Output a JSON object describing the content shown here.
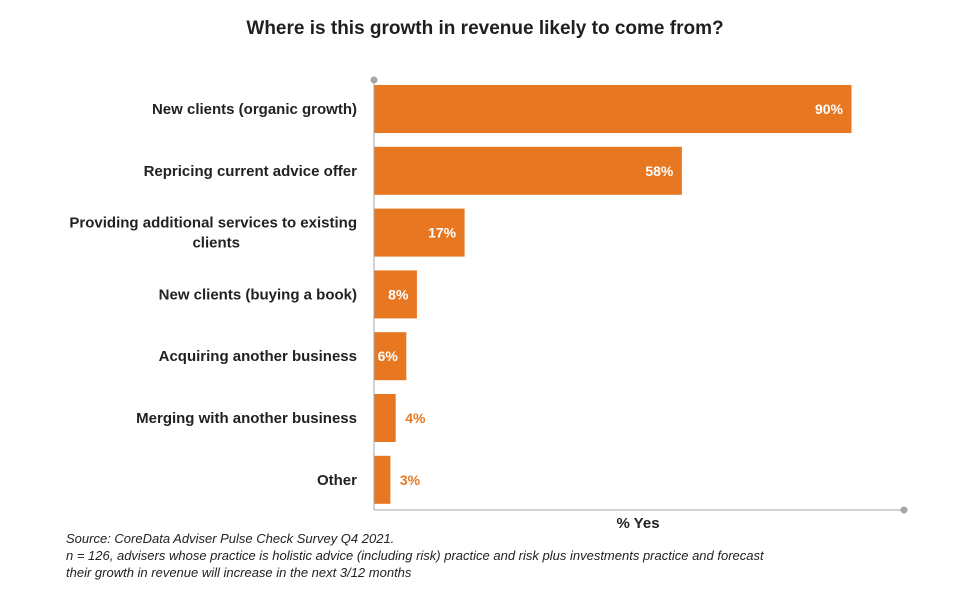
{
  "chart_data": {
    "type": "bar",
    "orientation": "horizontal",
    "title": "Where is this growth in revenue likely to come from?",
    "categories": [
      [
        "New clients (organic growth)"
      ],
      [
        "Repricing current advice offer"
      ],
      [
        "Providing additional services to existing",
        "clients"
      ],
      [
        "New clients (buying a book)"
      ],
      [
        "Acquiring another business"
      ],
      [
        "Merging with another business"
      ],
      [
        "Other"
      ]
    ],
    "values": [
      90,
      58,
      17,
      8,
      6,
      4,
      3
    ],
    "value_labels": [
      "90%",
      "58%",
      "17%",
      "8%",
      "6%",
      "4%",
      "3%"
    ],
    "xlabel": "% Yes",
    "ylabel": "",
    "xlim": [
      0,
      100
    ],
    "grid": false,
    "colors": {
      "bar": "#E87722",
      "label_inside": "#ffffff",
      "label_outside": "#E87722",
      "axis": "#a6a6a6"
    }
  },
  "source": {
    "line1": "Source: CoreData Adviser Pulse Check Survey Q4 2021.",
    "line2": "n = 126, advisers whose practice is holistic advice (including risk) practice and risk plus investments practice and forecast",
    "line3": "their growth in revenue will increase in the next 3/12 months"
  }
}
